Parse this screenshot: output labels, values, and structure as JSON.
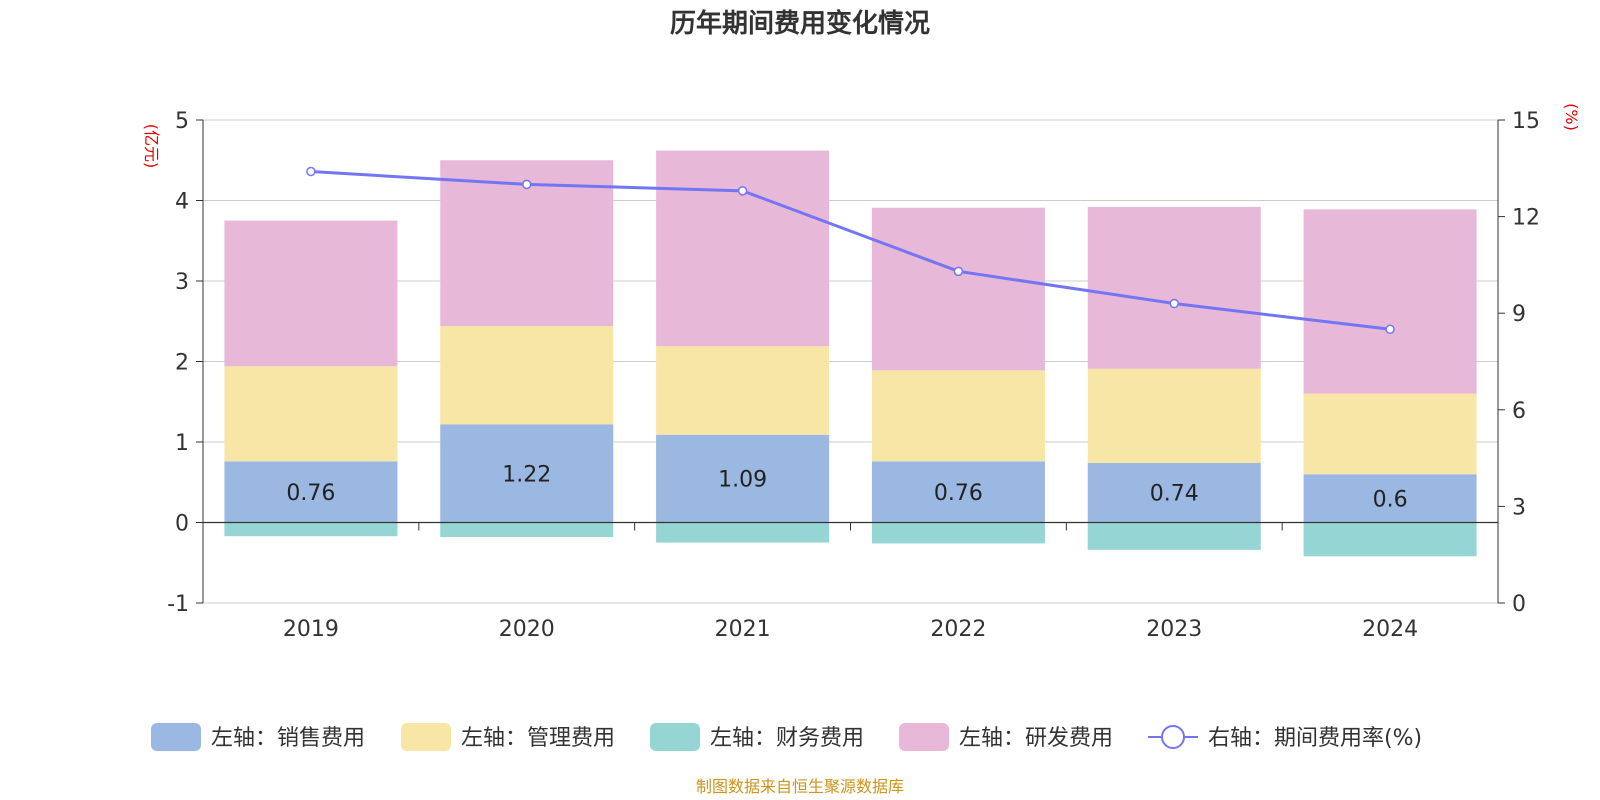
{
  "chart_data": {
    "type": "bar",
    "title": "历年期间费用变化情况",
    "categories": [
      "2019",
      "2020",
      "2021",
      "2022",
      "2023",
      "2024"
    ],
    "left_axis": {
      "unit": "(亿元)",
      "ylim": [
        -1,
        5
      ],
      "ticks": [
        -1,
        0,
        1,
        2,
        3,
        4,
        5
      ]
    },
    "right_axis": {
      "unit": "(%)",
      "ylim": [
        0,
        15
      ],
      "ticks": [
        0,
        3,
        6,
        9,
        12,
        15
      ]
    },
    "grid": true,
    "stacked": true,
    "series": [
      {
        "name": "左轴：销售费用",
        "axis": "left",
        "color": "#9bb8e2",
        "values": [
          0.76,
          1.22,
          1.09,
          0.76,
          0.74,
          0.6
        ],
        "show_labels": true
      },
      {
        "name": "左轴：管理费用",
        "axis": "left",
        "color": "#f8e6a6",
        "values": [
          1.18,
          1.22,
          1.1,
          1.13,
          1.17,
          1.0
        ],
        "show_labels": false
      },
      {
        "name": "左轴：财务费用",
        "axis": "left",
        "color": "#95d5d4",
        "values": [
          -0.17,
          -0.18,
          -0.25,
          -0.26,
          -0.34,
          -0.42
        ],
        "show_labels": false
      },
      {
        "name": "左轴：研发费用",
        "axis": "left",
        "color": "#e8b8d9",
        "values": [
          1.81,
          2.06,
          2.43,
          2.02,
          2.01,
          2.29
        ],
        "show_labels": false
      }
    ],
    "line_series": {
      "name": "右轴：期间费用率(%)",
      "axis": "right",
      "color": "#7276f2",
      "values": [
        13.4,
        13.0,
        12.8,
        10.3,
        9.3,
        8.5
      ]
    },
    "legend_position": "bottom"
  },
  "source_note": "制图数据来自恒生聚源数据库"
}
